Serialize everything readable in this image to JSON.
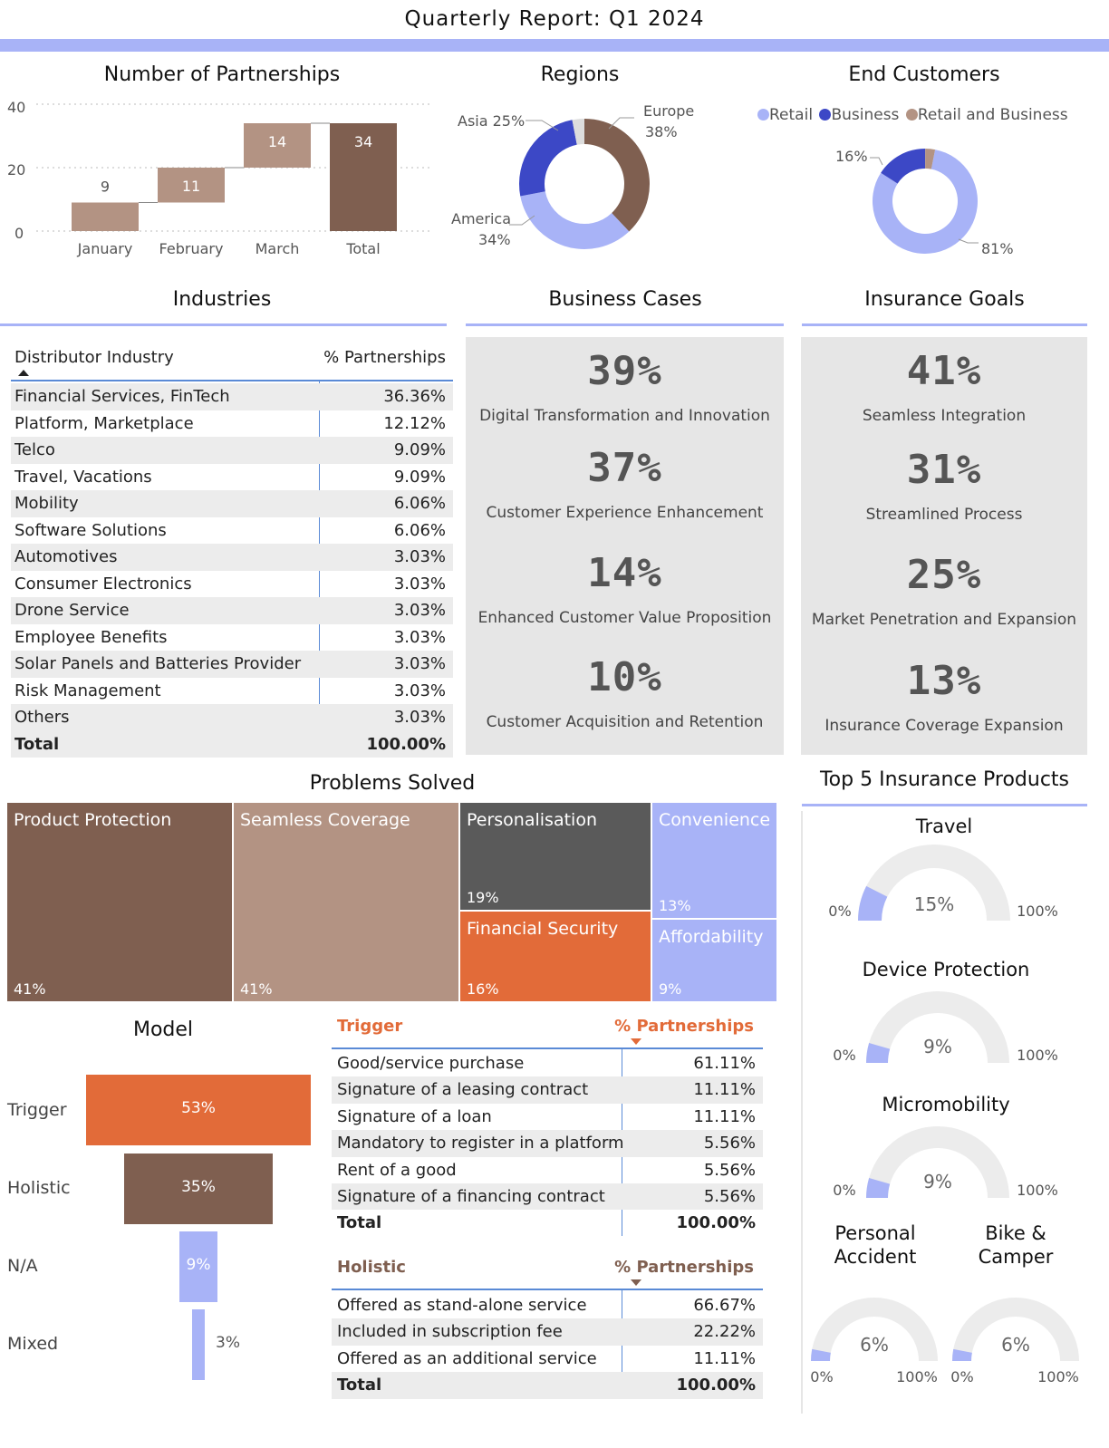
{
  "report_title": "Quarterly Report: Q1 2024",
  "colors": {
    "brown_dark": "#7f5f50",
    "brown_light": "#b39383",
    "blue_dark": "#3c48c6",
    "blue_light": "#a8b3f7",
    "orange": "#e26b39",
    "gray_dark": "#5a5a5a",
    "panel_gray": "#e6e6e6"
  },
  "partnerships": {
    "title": "Number of Partnerships",
    "y_ticks": [
      "40",
      "20",
      "0"
    ]
  },
  "regions": {
    "title": "Regions",
    "labels": {
      "europe": "Europe",
      "europe_pct": "38%",
      "asia": "Asia 25%",
      "america": "America",
      "america_pct": "34%"
    }
  },
  "end_customers": {
    "title": "End Customers",
    "legend": [
      "Retail",
      "Business",
      "Retail and Business"
    ],
    "label_small": "16%",
    "label_large": "81%"
  },
  "industries": {
    "title": "Industries",
    "col_industry": "Distributor Industry",
    "col_pct": "% Partnerships",
    "rows": [
      [
        "Financial Services, FinTech",
        "36.36%"
      ],
      [
        "Platform, Marketplace",
        "12.12%"
      ],
      [
        "Telco",
        "9.09%"
      ],
      [
        "Travel, Vacations",
        "9.09%"
      ],
      [
        "Mobility",
        "6.06%"
      ],
      [
        "Software Solutions",
        "6.06%"
      ],
      [
        "Automotives",
        "3.03%"
      ],
      [
        "Consumer Electronics",
        "3.03%"
      ],
      [
        "Drone Service",
        "3.03%"
      ],
      [
        "Employee Benefits",
        "3.03%"
      ],
      [
        "Solar Panels and Batteries Provider",
        "3.03%"
      ],
      [
        "Risk Management",
        "3.03%"
      ],
      [
        "Others",
        "3.03%"
      ]
    ],
    "total_label": "Total",
    "total_value": "100.00%"
  },
  "business_cases": {
    "title": "Business Cases",
    "items": [
      {
        "value": "39%",
        "label": "Digital Transformation and Innovation"
      },
      {
        "value": "37%",
        "label": "Customer Experience Enhancement"
      },
      {
        "value": "14%",
        "label": "Enhanced Customer Value Proposition"
      },
      {
        "value": "10%",
        "label": "Customer Acquisition and Retention"
      }
    ]
  },
  "insurance_goals": {
    "title": "Insurance Goals",
    "items": [
      {
        "value": "41%",
        "label": "Seamless Integration"
      },
      {
        "value": "31%",
        "label": "Streamlined Process"
      },
      {
        "value": "25%",
        "label": "Market Penetration and Expansion"
      },
      {
        "value": "13%",
        "label": "Insurance Coverage Expansion"
      }
    ]
  },
  "problems": {
    "title": "Problems Solved",
    "items": [
      {
        "name": "Product Protection",
        "pct": "41%"
      },
      {
        "name": "Seamless Coverage",
        "pct": "41%"
      },
      {
        "name": "Personalisation",
        "pct": "19%"
      },
      {
        "name": "Financial Security",
        "pct": "16%"
      },
      {
        "name": "Convenience",
        "pct": "13%"
      },
      {
        "name": "Affordability",
        "pct": "9%"
      }
    ]
  },
  "model": {
    "title": "Model",
    "items": [
      {
        "label": "Trigger",
        "pct": "53%"
      },
      {
        "label": "Holistic",
        "pct": "35%"
      },
      {
        "label": "N/A",
        "pct": "9%"
      },
      {
        "label": "Mixed",
        "pct": "3%"
      }
    ]
  },
  "trigger_table": {
    "header": "Trigger",
    "col_pct": "% Partnerships",
    "rows": [
      [
        "Good/service purchase",
        "61.11%"
      ],
      [
        "Signature of a leasing contract",
        "11.11%"
      ],
      [
        "Signature of a loan",
        "11.11%"
      ],
      [
        "Mandatory to register in a platform",
        "5.56%"
      ],
      [
        "Rent of a good",
        "5.56%"
      ],
      [
        "Signature of a financing contract",
        "5.56%"
      ]
    ],
    "total_label": "Total",
    "total_value": "100.00%"
  },
  "holistic_table": {
    "header": "Holistic",
    "col_pct": "% Partnerships",
    "rows": [
      [
        "Offered as stand-alone service",
        "66.67%"
      ],
      [
        "Included in subscription fee",
        "22.22%"
      ],
      [
        "Offered as an additional service",
        "11.11%"
      ]
    ],
    "total_label": "Total",
    "total_value": "100.00%"
  },
  "top_products": {
    "title": "Top 5 Insurance Products",
    "min_label": "0%",
    "max_label": "100%",
    "gauges": [
      {
        "name": "Travel",
        "value": 15,
        "label": "15%"
      },
      {
        "name": "Device Protection",
        "value": 9,
        "label": "9%"
      },
      {
        "name": "Micromobility",
        "value": 9,
        "label": "9%"
      },
      {
        "name": "Personal Accident",
        "value": 6,
        "label": "6%"
      },
      {
        "name": "Bike & Camper",
        "value": 6,
        "label": "6%"
      }
    ]
  },
  "chart_data": [
    {
      "type": "bar",
      "subtype": "waterfall",
      "title": "Number of Partnerships",
      "categories": [
        "January",
        "February",
        "March",
        "Total"
      ],
      "values": [
        9,
        11,
        14,
        34
      ],
      "ylim": [
        0,
        40
      ],
      "grid": true
    },
    {
      "type": "pie",
      "subtype": "donut",
      "title": "Regions",
      "labels": [
        "Europe",
        "America",
        "Asia"
      ],
      "values": [
        38,
        34,
        25
      ],
      "other": 3
    },
    {
      "type": "pie",
      "subtype": "donut",
      "title": "End Customers",
      "labels": [
        "Retail",
        "Business",
        "Retail and Business"
      ],
      "values": [
        81,
        16,
        3
      ],
      "legend": "top"
    },
    {
      "type": "heatmap",
      "subtype": "treemap",
      "title": "Problems Solved",
      "labels": [
        "Product Protection",
        "Seamless Coverage",
        "Personalisation",
        "Financial Security",
        "Convenience",
        "Affordability"
      ],
      "values": [
        41,
        41,
        19,
        16,
        13,
        9
      ]
    },
    {
      "type": "bar",
      "subtype": "funnel",
      "title": "Model",
      "categories": [
        "Trigger",
        "Holistic",
        "N/A",
        "Mixed"
      ],
      "values": [
        53,
        35,
        9,
        3
      ]
    }
  ]
}
